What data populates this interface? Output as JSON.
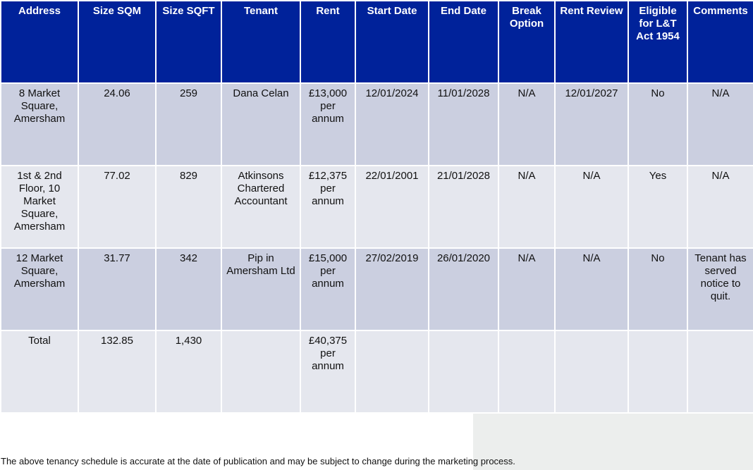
{
  "table": {
    "headers": [
      "Address",
      "Size SQM",
      "Size SQFT",
      "Tenant",
      "Rent",
      "Start Date",
      "End Date",
      "Break Option",
      "Rent Review",
      "Eligible for L&T Act 1954",
      "Comments"
    ],
    "rows": [
      [
        "8 Market Square, Amersham",
        "24.06",
        "259",
        "Dana Celan",
        "£13,000 per annum",
        "12/01/2024",
        "11/01/2028",
        "N/A",
        "12/01/2027",
        "No",
        "N/A"
      ],
      [
        "1st & 2nd Floor, 10 Market Square, Amersham",
        "77.02",
        "829",
        "Atkinsons Chartered Accountant",
        "£12,375 per annum",
        "22/01/2001",
        "21/01/2028",
        "N/A",
        "N/A",
        "Yes",
        "N/A"
      ],
      [
        "12 Market Square, Amersham",
        "31.77",
        "342",
        "Pip in Amersham Ltd",
        "£15,000 per annum",
        "27/02/2019",
        "26/01/2020",
        "N/A",
        "N/A",
        "No",
        "Tenant has served notice to quit."
      ],
      [
        "Total",
        "132.85",
        "1,430",
        null,
        "£40,375 per annum",
        null,
        null,
        null,
        null,
        null,
        null
      ]
    ]
  },
  "footer": {
    "note": "The above tenancy schedule is accurate at the date of publication and may be subject to change during the marketing process."
  }
}
